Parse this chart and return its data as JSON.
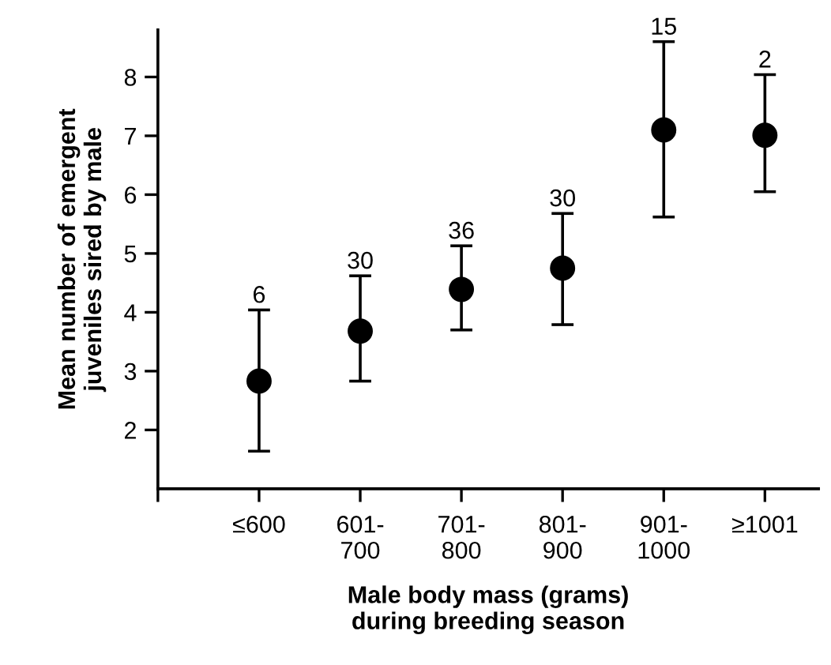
{
  "chart_data": {
    "type": "scatter",
    "xlabel": "Male body mass (grams)\nduring breeding season",
    "ylabel": "Mean number of emergent\njuveniles sired by male",
    "categories": [
      "≤600",
      "601-\n700",
      "701-\n800",
      "801-\n900",
      "901-\n1000",
      "≥1001"
    ],
    "values": [
      2.83,
      3.68,
      4.39,
      4.75,
      7.1,
      7.01
    ],
    "errors": [
      [
        1.64,
        4.04
      ],
      [
        2.83,
        4.62
      ],
      [
        3.7,
        5.13
      ],
      [
        3.79,
        5.68
      ],
      [
        5.62,
        8.6
      ],
      [
        6.05,
        8.04
      ]
    ],
    "color": "#000000",
    "marker": "circle",
    "ylim": [
      1,
      8.8
    ],
    "yticks": [
      2,
      3,
      4,
      5,
      6,
      7,
      8
    ],
    "grid": false,
    "legend": false,
    "annotations": [
      {
        "text": "6",
        "x": "≤600",
        "y": 4.04
      },
      {
        "text": "30",
        "x": "601-\n700",
        "y": 4.62
      },
      {
        "text": "36",
        "x": "701-\n800",
        "y": 5.13
      },
      {
        "text": "30",
        "x": "801-\n900",
        "y": 5.68
      },
      {
        "text": "15",
        "x": "901-\n1000",
        "y": 8.6
      },
      {
        "text": "2",
        "x": "≥1001",
        "y": 8.04
      }
    ]
  }
}
